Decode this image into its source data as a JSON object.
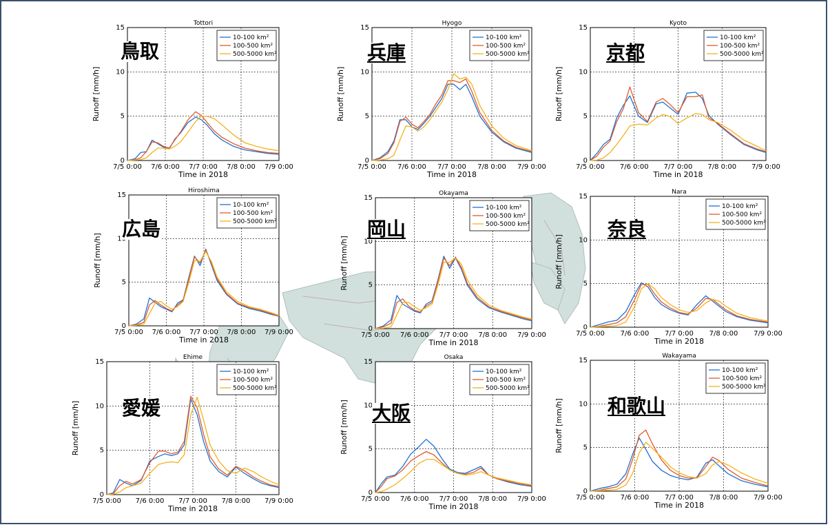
{
  "common": {
    "xlabel": "Time in 2018",
    "ylabel": "Runoff [mm/h]",
    "xticks": [
      "7/5 0:00",
      "7/6 0:00",
      "7/7 0:00",
      "7/8 0:00",
      "7/9 0:00"
    ],
    "yticks": [
      "0",
      "5",
      "10",
      "15"
    ],
    "legend": [
      "10-100 km²",
      "100-500 km²",
      "500-5000 km²"
    ],
    "colors": [
      "#1f6fd1",
      "#e05a2b",
      "#f2b21c"
    ]
  },
  "chart_data": [
    {
      "type": "line",
      "title": "Tottori",
      "region_label": "鳥取",
      "xlabel": "Time in 2018",
      "ylabel": "Runoff [mm/h]",
      "xlim": [
        0,
        4
      ],
      "ylim": [
        0,
        15
      ],
      "grid": true,
      "legend_position": "top-right",
      "x": [
        0,
        0.2,
        0.35,
        0.5,
        0.65,
        0.8,
        0.95,
        1.1,
        1.25,
        1.4,
        1.6,
        1.8,
        1.95,
        2.1,
        2.3,
        2.5,
        2.8,
        3.1,
        3.4,
        3.7,
        4.0
      ],
      "series": [
        {
          "name": "10-100 km²",
          "values": [
            0,
            0.2,
            0.9,
            1.0,
            2.3,
            1.9,
            1.5,
            1.3,
            2.4,
            3.1,
            4.3,
            4.9,
            4.6,
            4.0,
            3.0,
            2.3,
            1.6,
            1.2,
            1.0,
            0.8,
            0.7
          ]
        },
        {
          "name": "100-500 km²",
          "values": [
            0,
            0.1,
            0.3,
            1.0,
            2.1,
            2.0,
            1.6,
            1.4,
            2.3,
            3.2,
            4.6,
            5.5,
            5.1,
            4.3,
            3.3,
            2.6,
            1.9,
            1.4,
            1.1,
            0.9,
            0.8
          ]
        },
        {
          "name": "500-5000 km²",
          "values": [
            0,
            0.05,
            0.1,
            0.3,
            0.9,
            1.4,
            1.4,
            1.3,
            1.6,
            2.1,
            3.2,
            4.4,
            5.0,
            5.0,
            4.7,
            4.0,
            2.9,
            2.0,
            1.6,
            1.3,
            1.1
          ]
        }
      ]
    },
    {
      "type": "line",
      "title": "Hyogo",
      "region_label": "兵庫",
      "xlabel": "Time in 2018",
      "ylabel": "Runoff [mm/h]",
      "xlim": [
        0,
        4
      ],
      "ylim": [
        0,
        15
      ],
      "grid": true,
      "legend_position": "top-right",
      "x": [
        0,
        0.2,
        0.4,
        0.55,
        0.7,
        0.85,
        1.0,
        1.15,
        1.3,
        1.45,
        1.6,
        1.75,
        1.9,
        2.05,
        2.2,
        2.35,
        2.5,
        2.7,
        3.0,
        3.3,
        3.6,
        4.0
      ],
      "series": [
        {
          "name": "10-100 km²",
          "values": [
            0,
            0.3,
            1.0,
            2.2,
            4.6,
            4.6,
            3.8,
            3.5,
            4.2,
            5.0,
            6.0,
            7.0,
            8.6,
            8.6,
            8.0,
            8.6,
            7.2,
            5.0,
            3.2,
            2.1,
            1.4,
            0.9
          ]
        },
        {
          "name": "100-500 km²",
          "values": [
            0,
            0.2,
            0.8,
            2.0,
            4.4,
            4.9,
            4.1,
            3.7,
            4.4,
            5.2,
            6.4,
            7.4,
            9.0,
            9.0,
            8.8,
            9.2,
            7.8,
            5.4,
            3.4,
            2.2,
            1.5,
            1.0
          ]
        },
        {
          "name": "500-5000 km²",
          "values": [
            0,
            0.05,
            0.2,
            0.6,
            2.3,
            3.9,
            3.8,
            3.3,
            3.8,
            4.6,
            5.6,
            6.6,
            8.0,
            9.8,
            9.2,
            9.4,
            8.6,
            6.2,
            3.9,
            2.5,
            1.7,
            1.1
          ]
        }
      ]
    },
    {
      "type": "line",
      "title": "Kyoto",
      "region_label": "京都",
      "xlabel": "Time in 2018",
      "ylabel": "Runoff [mm/h]",
      "xlim": [
        0,
        4
      ],
      "ylim": [
        0,
        15
      ],
      "grid": true,
      "legend_position": "top-right",
      "x": [
        0,
        0.15,
        0.3,
        0.45,
        0.6,
        0.75,
        0.9,
        1.1,
        1.3,
        1.5,
        1.65,
        1.8,
        2.0,
        2.2,
        2.4,
        2.55,
        2.7,
        2.9,
        3.2,
        3.5,
        3.8,
        4.0
      ],
      "series": [
        {
          "name": "10-100 km²",
          "values": [
            0,
            0.8,
            1.8,
            2.4,
            4.8,
            6.2,
            7.3,
            5.0,
            4.3,
            6.4,
            6.6,
            6.0,
            5.2,
            7.6,
            7.7,
            7.0,
            5.1,
            4.1,
            2.9,
            1.8,
            1.2,
            0.9
          ]
        },
        {
          "name": "100-500 km²",
          "values": [
            0,
            0.5,
            1.5,
            2.2,
            4.4,
            5.8,
            8.3,
            5.4,
            4.4,
            6.6,
            7.0,
            6.4,
            5.4,
            7.2,
            7.2,
            7.4,
            4.8,
            4.2,
            3.0,
            1.9,
            1.3,
            1.0
          ]
        },
        {
          "name": "500-5000 km²",
          "values": [
            0,
            0.05,
            0.3,
            0.9,
            1.8,
            2.8,
            3.9,
            4.1,
            4.0,
            4.8,
            5.2,
            5.0,
            4.2,
            4.8,
            5.3,
            5.2,
            4.6,
            4.3,
            3.4,
            2.3,
            1.6,
            1.1
          ]
        }
      ]
    },
    {
      "type": "line",
      "title": "Hiroshima",
      "region_label": "広島",
      "xlabel": "Time in 2018",
      "ylabel": "Runoff [mm/h]",
      "xlim": [
        0,
        4
      ],
      "ylim": [
        0,
        15
      ],
      "grid": true,
      "legend_position": "top-right",
      "x": [
        0,
        0.2,
        0.4,
        0.55,
        0.7,
        0.85,
        1.0,
        1.15,
        1.3,
        1.45,
        1.6,
        1.75,
        1.9,
        2.05,
        2.2,
        2.35,
        2.6,
        2.9,
        3.2,
        3.5,
        3.8,
        4.0
      ],
      "series": [
        {
          "name": "10-100 km²",
          "values": [
            0,
            0.2,
            0.8,
            3.2,
            2.7,
            2.2,
            1.9,
            1.6,
            2.6,
            3.0,
            5.6,
            8.0,
            6.9,
            8.8,
            7.0,
            5.2,
            3.6,
            2.5,
            2.0,
            1.7,
            1.3,
            1.1
          ]
        },
        {
          "name": "100-500 km²",
          "values": [
            0,
            0.1,
            0.4,
            2.4,
            2.9,
            2.4,
            2.0,
            1.7,
            2.4,
            2.9,
            5.4,
            7.9,
            7.2,
            8.7,
            7.2,
            5.4,
            3.7,
            2.6,
            2.1,
            1.8,
            1.4,
            1.1
          ]
        },
        {
          "name": "500-5000 km²",
          "values": [
            0,
            0.05,
            0.2,
            1.4,
            2.6,
            2.8,
            2.3,
            1.9,
            2.2,
            2.8,
            5.0,
            7.5,
            7.4,
            8.5,
            7.4,
            5.6,
            3.9,
            2.8,
            2.2,
            1.9,
            1.5,
            1.2
          ]
        }
      ]
    },
    {
      "type": "line",
      "title": "Okayama",
      "region_label": "岡山",
      "xlabel": "Time in 2018",
      "ylabel": "Runoff [mm/h]",
      "xlim": [
        0,
        4
      ],
      "ylim": [
        0,
        15
      ],
      "grid": true,
      "legend_position": "top-right",
      "x": [
        0,
        0.2,
        0.4,
        0.55,
        0.7,
        0.85,
        1.0,
        1.15,
        1.3,
        1.45,
        1.6,
        1.75,
        1.9,
        2.05,
        2.2,
        2.35,
        2.6,
        2.9,
        3.2,
        3.5,
        3.8,
        4.0
      ],
      "series": [
        {
          "name": "10-100 km²",
          "values": [
            0,
            0.3,
            1.0,
            3.8,
            2.8,
            2.4,
            2.0,
            1.8,
            2.8,
            3.2,
            5.6,
            8.3,
            6.9,
            8.1,
            6.8,
            5.0,
            3.4,
            2.4,
            1.9,
            1.5,
            1.1,
            0.9
          ]
        },
        {
          "name": "100-500 km²",
          "values": [
            0,
            0.2,
            0.6,
            3.0,
            3.4,
            2.6,
            2.1,
            1.9,
            2.6,
            3.0,
            5.4,
            8.1,
            7.2,
            8.2,
            7.0,
            5.2,
            3.6,
            2.5,
            2.0,
            1.6,
            1.2,
            1.0
          ]
        },
        {
          "name": "500-5000 km²",
          "values": [
            0,
            0.05,
            0.2,
            1.6,
            3.0,
            3.0,
            2.5,
            2.1,
            2.4,
            2.8,
            5.0,
            7.6,
            7.6,
            8.1,
            7.4,
            5.6,
            3.9,
            2.7,
            2.1,
            1.7,
            1.3,
            1.1
          ]
        }
      ]
    },
    {
      "type": "line",
      "title": "Nara",
      "region_label": "奈良",
      "xlabel": "Time in 2018",
      "ylabel": "Runoff [mm/h]",
      "xlim": [
        0,
        4
      ],
      "ylim": [
        0,
        15
      ],
      "grid": true,
      "legend_position": "top-right",
      "x": [
        0,
        0.2,
        0.4,
        0.6,
        0.8,
        1.0,
        1.15,
        1.3,
        1.45,
        1.6,
        1.8,
        2.0,
        2.2,
        2.4,
        2.6,
        2.75,
        2.9,
        3.05,
        3.3,
        3.6,
        4.0
      ],
      "series": [
        {
          "name": "10-100 km²",
          "values": [
            0,
            0.3,
            0.6,
            0.8,
            1.8,
            3.8,
            5.1,
            4.6,
            3.4,
            2.6,
            2.0,
            1.6,
            1.4,
            2.6,
            3.6,
            3.0,
            2.4,
            1.8,
            1.2,
            0.8,
            0.5
          ]
        },
        {
          "name": "100-500 km²",
          "values": [
            0,
            0.1,
            0.3,
            0.5,
            1.2,
            3.2,
            4.9,
            4.9,
            3.8,
            2.9,
            2.2,
            1.7,
            1.5,
            2.2,
            3.3,
            3.2,
            2.6,
            2.0,
            1.3,
            0.9,
            0.6
          ]
        },
        {
          "name": "500-5000 km²",
          "values": [
            0,
            0.05,
            0.1,
            0.2,
            0.6,
            2.4,
            4.4,
            5.0,
            4.4,
            3.4,
            2.6,
            2.0,
            1.7,
            1.9,
            2.8,
            3.2,
            3.0,
            2.4,
            1.6,
            1.1,
            0.7
          ]
        }
      ]
    },
    {
      "type": "line",
      "title": "Ehime",
      "region_label": "愛媛",
      "xlabel": "Time in 2018",
      "ylabel": "Runoff [mm/h]",
      "xlim": [
        0,
        4
      ],
      "ylim": [
        0,
        15
      ],
      "grid": true,
      "legend_position": "top-right",
      "x": [
        0,
        0.15,
        0.3,
        0.45,
        0.6,
        0.8,
        1.0,
        1.2,
        1.35,
        1.5,
        1.65,
        1.8,
        1.95,
        2.1,
        2.25,
        2.4,
        2.6,
        2.8,
        3.0,
        3.2,
        3.4,
        3.6,
        3.8,
        4.0
      ],
      "series": [
        {
          "name": "10-100 km²",
          "values": [
            0,
            0.2,
            1.7,
            1.3,
            1.0,
            1.6,
            3.8,
            4.3,
            4.6,
            4.4,
            4.6,
            5.6,
            10.8,
            9.0,
            6.0,
            3.8,
            2.6,
            2.0,
            3.1,
            2.4,
            1.8,
            1.3,
            1.0,
            0.8
          ]
        },
        {
          "name": "100-500 km²",
          "values": [
            0,
            0.1,
            1.0,
            1.5,
            1.2,
            1.7,
            3.6,
            4.9,
            4.9,
            4.6,
            4.8,
            6.0,
            11.1,
            9.8,
            6.8,
            4.3,
            2.9,
            2.2,
            3.2,
            2.7,
            2.0,
            1.5,
            1.1,
            0.9
          ]
        },
        {
          "name": "500-5000 km²",
          "values": [
            0,
            0.05,
            0.3,
            0.8,
            1.0,
            1.3,
            2.4,
            3.4,
            3.6,
            3.7,
            3.6,
            4.5,
            9.0,
            11.0,
            8.4,
            5.6,
            3.8,
            2.7,
            2.4,
            3.0,
            2.6,
            2.0,
            1.5,
            1.1
          ]
        }
      ]
    },
    {
      "type": "line",
      "title": "Osaka",
      "region_label": "大阪",
      "xlabel": "Time in 2018",
      "ylabel": "Runoff [mm/h]",
      "xlim": [
        0,
        4
      ],
      "ylim": [
        0,
        15
      ],
      "grid": true,
      "legend_position": "top-right",
      "x": [
        0,
        0.15,
        0.3,
        0.5,
        0.7,
        0.9,
        1.1,
        1.3,
        1.5,
        1.7,
        1.9,
        2.1,
        2.3,
        2.5,
        2.7,
        2.9,
        3.1,
        3.4,
        3.7,
        4.0
      ],
      "series": [
        {
          "name": "10-100 km²",
          "values": [
            0,
            1.0,
            1.8,
            2.0,
            3.0,
            4.4,
            5.2,
            6.1,
            5.3,
            3.9,
            2.7,
            2.3,
            2.2,
            2.6,
            3.0,
            2.0,
            1.6,
            1.2,
            0.9,
            0.7
          ]
        },
        {
          "name": "100-500 km²",
          "values": [
            0,
            0.7,
            1.6,
            1.9,
            2.6,
            3.6,
            4.2,
            4.7,
            4.3,
            3.4,
            2.6,
            2.2,
            2.1,
            2.3,
            2.8,
            2.0,
            1.6,
            1.3,
            1.0,
            0.8
          ]
        },
        {
          "name": "500-5000 km²",
          "values": [
            0,
            0.1,
            0.4,
            0.9,
            1.6,
            2.4,
            3.3,
            3.8,
            3.8,
            3.2,
            2.6,
            2.2,
            2.0,
            2.1,
            2.4,
            2.0,
            1.7,
            1.4,
            1.1,
            0.9
          ]
        }
      ]
    },
    {
      "type": "line",
      "title": "Wakayama",
      "region_label": "和歌山",
      "xlabel": "Time in 2018",
      "ylabel": "Runoff [mm/h]",
      "xlim": [
        0,
        4
      ],
      "ylim": [
        0,
        15
      ],
      "grid": true,
      "legend_position": "top-right",
      "x": [
        0,
        0.2,
        0.4,
        0.6,
        0.8,
        0.95,
        1.1,
        1.25,
        1.4,
        1.6,
        1.8,
        2.0,
        2.2,
        2.4,
        2.6,
        2.75,
        2.9,
        3.1,
        3.4,
        3.7,
        4.0
      ],
      "series": [
        {
          "name": "10-100 km²",
          "values": [
            0,
            0.3,
            0.5,
            0.8,
            2.0,
            4.2,
            6.1,
            4.8,
            3.4,
            2.4,
            1.8,
            1.5,
            1.3,
            1.6,
            3.2,
            3.6,
            2.9,
            2.0,
            1.2,
            0.8,
            0.5
          ]
        },
        {
          "name": "100-500 km²",
          "values": [
            0,
            0.1,
            0.3,
            0.5,
            1.4,
            3.6,
            6.4,
            7.0,
            5.4,
            3.6,
            2.4,
            1.8,
            1.5,
            1.5,
            2.8,
            3.9,
            3.5,
            2.5,
            1.5,
            1.0,
            0.6
          ]
        },
        {
          "name": "500-5000 km²",
          "values": [
            0,
            0.05,
            0.1,
            0.2,
            0.7,
            2.0,
            4.4,
            5.6,
            4.9,
            3.9,
            2.8,
            2.1,
            1.7,
            1.5,
            2.0,
            3.0,
            3.4,
            3.0,
            2.1,
            1.4,
            0.9
          ]
        }
      ]
    }
  ]
}
